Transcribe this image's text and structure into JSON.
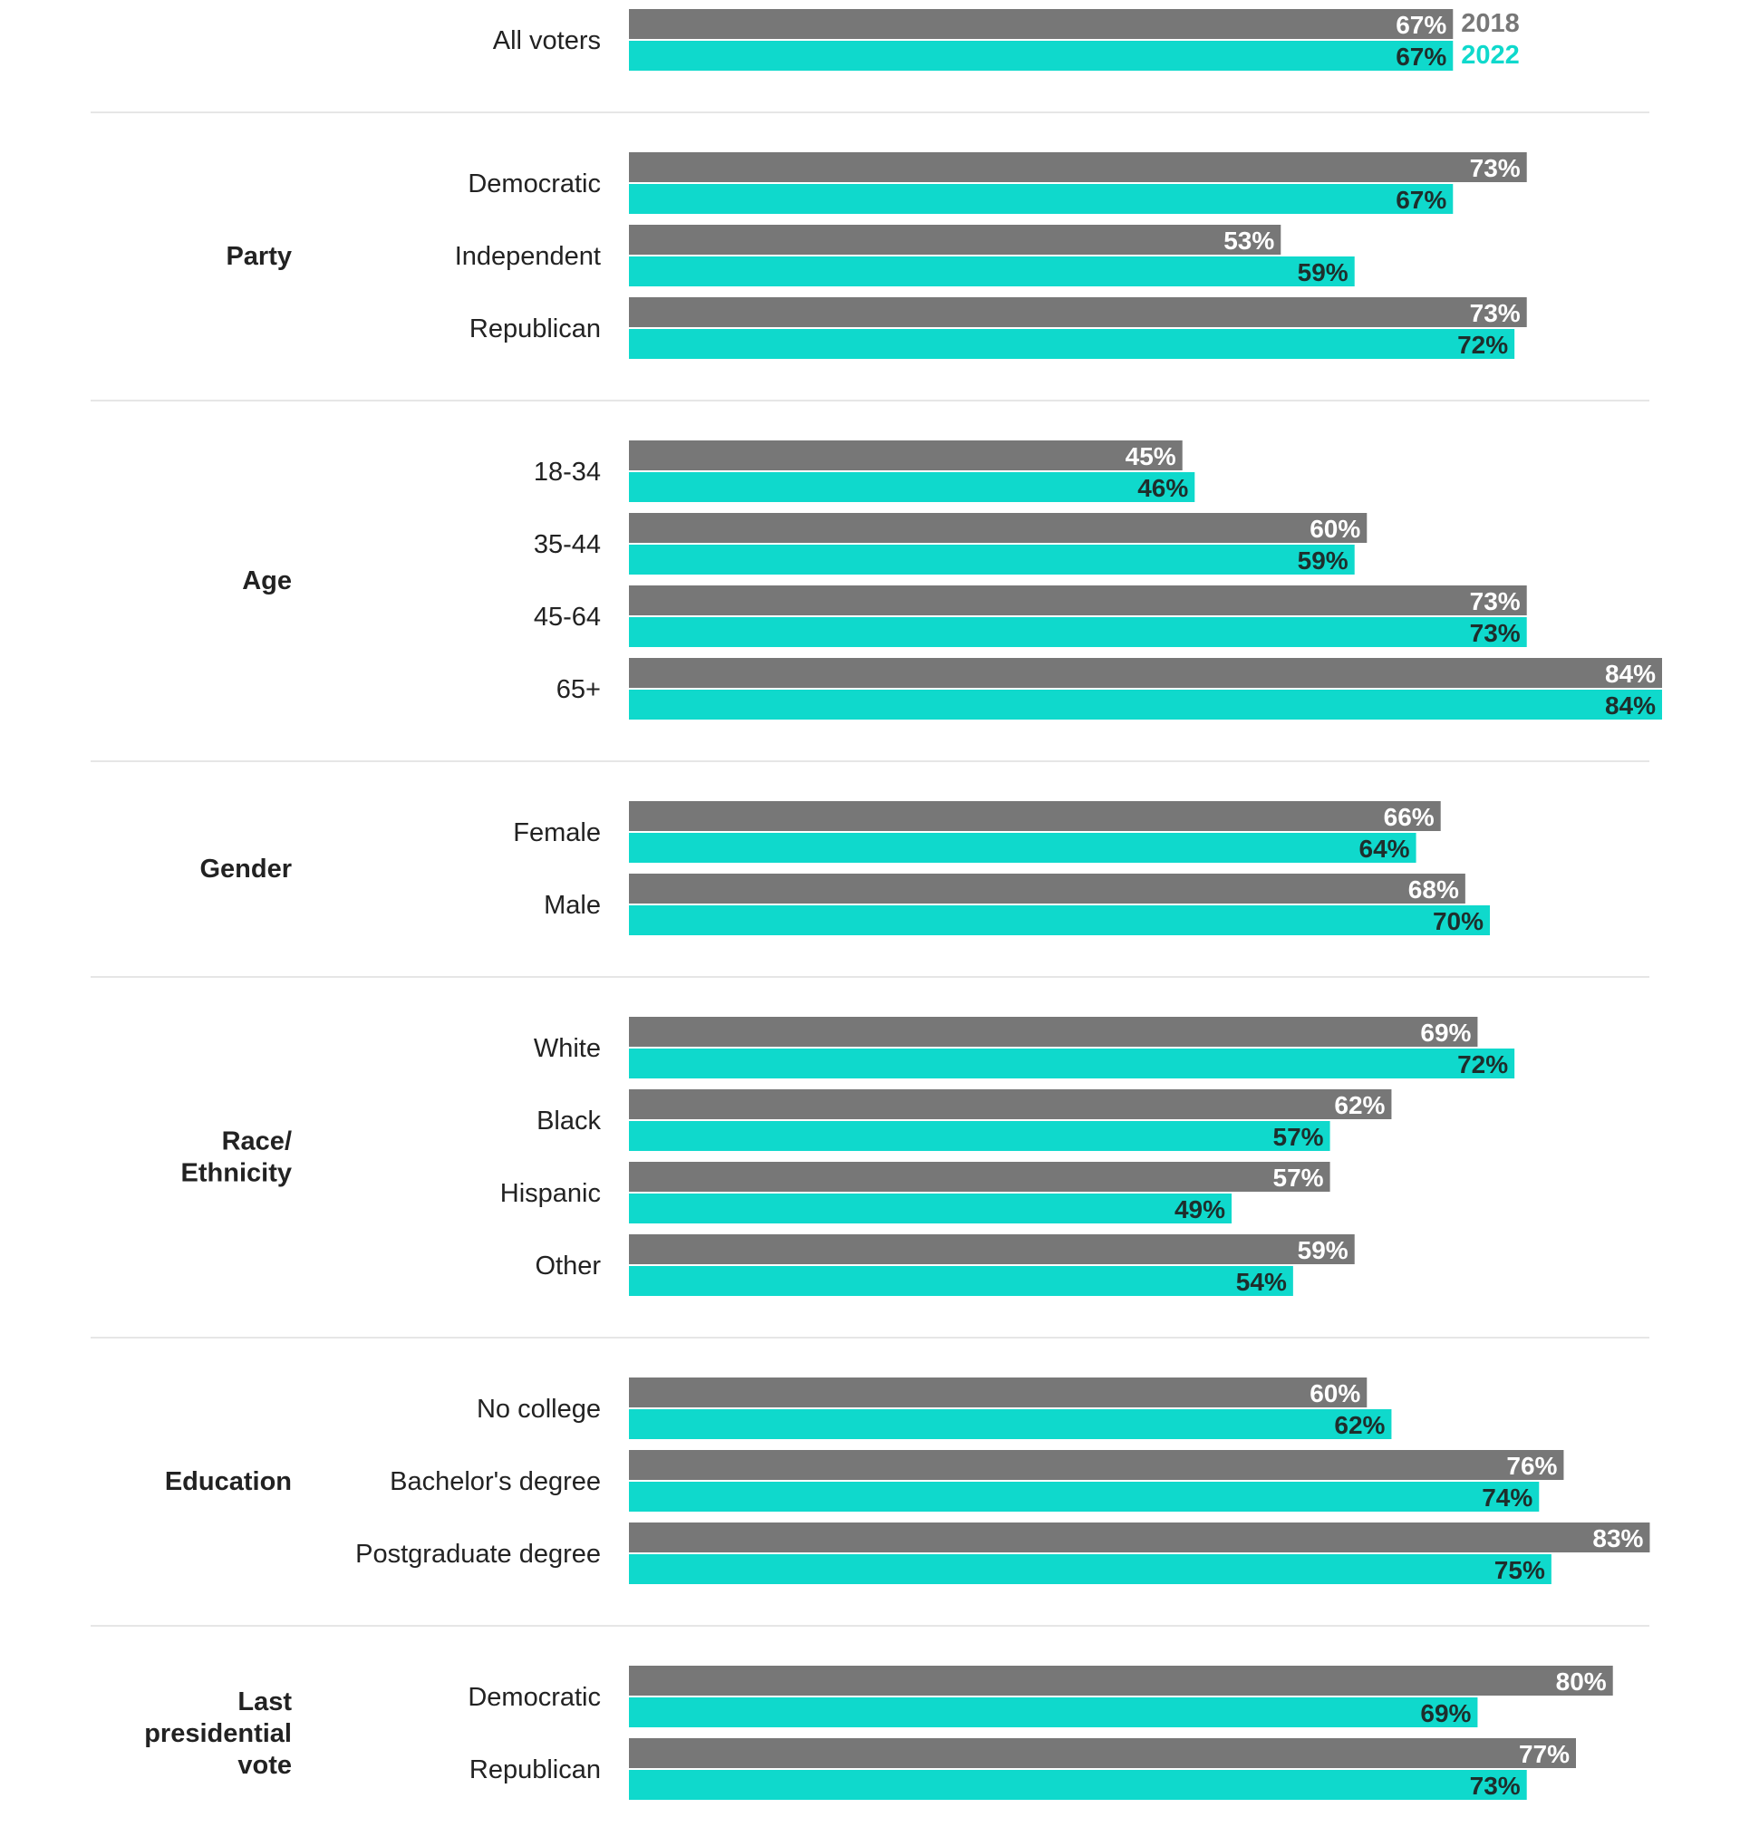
{
  "chart_data": {
    "type": "bar",
    "orientation": "horizontal",
    "value_format": "percent",
    "xlim": [
      0,
      84
    ],
    "grid": false,
    "legend_placement": "inline-right-of-first-row",
    "colors": {
      "2018": "#777777",
      "2022": "#0fd9cc",
      "label_2018": "#ffffff",
      "label_2022": "#1e2e2c",
      "divider": "#dddddd"
    },
    "series": [
      {
        "name": "2018",
        "color": "#777777"
      },
      {
        "name": "2022",
        "color": "#0fd9cc"
      }
    ],
    "groups": [
      {
        "label": "",
        "rows": [
          {
            "category": "All voters",
            "values": [
              67,
              67
            ]
          }
        ]
      },
      {
        "label": "Party",
        "rows": [
          {
            "category": "Democratic",
            "values": [
              73,
              67
            ]
          },
          {
            "category": "Independent",
            "values": [
              53,
              59
            ]
          },
          {
            "category": "Republican",
            "values": [
              73,
              72
            ]
          }
        ]
      },
      {
        "label": "Age",
        "rows": [
          {
            "category": "18-34",
            "values": [
              45,
              46
            ]
          },
          {
            "category": "35-44",
            "values": [
              60,
              59
            ]
          },
          {
            "category": "45-64",
            "values": [
              73,
              73
            ]
          },
          {
            "category": "65+",
            "values": [
              84,
              84
            ]
          }
        ]
      },
      {
        "label": "Gender",
        "rows": [
          {
            "category": "Female",
            "values": [
              66,
              64
            ]
          },
          {
            "category": "Male",
            "values": [
              68,
              70
            ]
          }
        ]
      },
      {
        "label": "Race/\nEthnicity",
        "rows": [
          {
            "category": "White",
            "values": [
              69,
              72
            ]
          },
          {
            "category": "Black",
            "values": [
              62,
              57
            ]
          },
          {
            "category": "Hispanic",
            "values": [
              57,
              49
            ]
          },
          {
            "category": "Other",
            "values": [
              59,
              54
            ]
          }
        ]
      },
      {
        "label": "Education",
        "rows": [
          {
            "category": "No college",
            "values": [
              60,
              62
            ]
          },
          {
            "category": "Bachelor's degree",
            "values": [
              76,
              74
            ]
          },
          {
            "category": "Postgraduate degree",
            "values": [
              83,
              75
            ]
          }
        ]
      },
      {
        "label": "Last\npresidential\nvote",
        "rows": [
          {
            "category": "Democratic",
            "values": [
              80,
              69
            ]
          },
          {
            "category": "Republican",
            "values": [
              77,
              73
            ]
          }
        ]
      }
    ]
  }
}
